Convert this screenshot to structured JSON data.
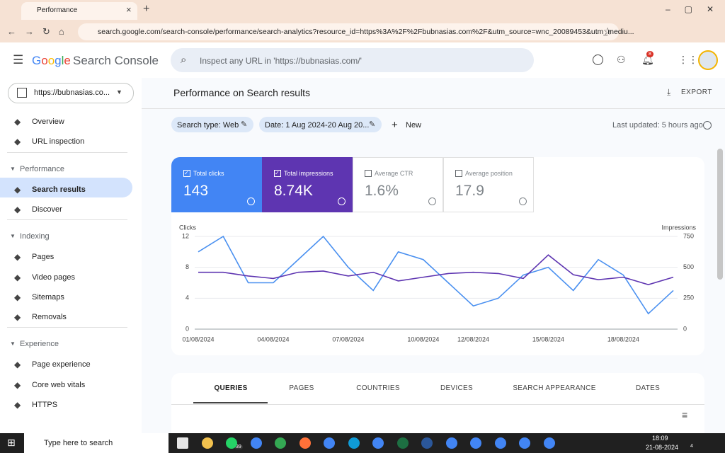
{
  "browser": {
    "tab_title": "Performance",
    "url": "search.google.com/search-console/performance/search-analytics?resource_id=https%3A%2F%2Fbubnasias.com%2F&utm_source=wnc_20089453&utm_mediu..."
  },
  "header": {
    "logo": "Google",
    "product": "Search Console",
    "search_placeholder": "Inspect any URL in 'https://bubnasias.com/'",
    "notification_count": "8"
  },
  "property": "https://bubnasias.co...",
  "nav": {
    "top": [
      "Overview",
      "URL inspection"
    ],
    "sections": [
      {
        "title": "Performance",
        "items": [
          "Search results",
          "Discover"
        ]
      },
      {
        "title": "Indexing",
        "items": [
          "Pages",
          "Video pages",
          "Sitemaps",
          "Removals"
        ]
      },
      {
        "title": "Experience",
        "items": [
          "Page experience",
          "Core web vitals",
          "HTTPS"
        ]
      }
    ]
  },
  "page": {
    "title": "Performance on Search results",
    "export": "EXPORT",
    "filters": [
      "Search type: Web",
      "Date: 1 Aug 2024-20 Aug 20..."
    ],
    "new": "New",
    "last_updated": "Last updated: 5 hours ago"
  },
  "metrics": [
    {
      "label": "Total clicks",
      "value": "143",
      "color": "#4285f4",
      "checked": true
    },
    {
      "label": "Total impressions",
      "value": "8.74K",
      "color": "#5e35b1",
      "checked": true
    },
    {
      "label": "Average CTR",
      "value": "1.6%",
      "checked": false
    },
    {
      "label": "Average position",
      "value": "17.9",
      "checked": false
    }
  ],
  "chart_data": {
    "type": "line",
    "categories": [
      "01/08/2024",
      null,
      null,
      "04/08/2024",
      null,
      null,
      "07/08/2024",
      null,
      null,
      "10/08/2024",
      null,
      "12/08/2024",
      null,
      null,
      "15/08/2024",
      null,
      null,
      "18/08/2024",
      null,
      null
    ],
    "y_label": "Clicks",
    "y2_label": "Impressions",
    "ylim": [
      0,
      12
    ],
    "yticks": [
      0,
      4,
      8,
      12
    ],
    "y2lim": [
      0,
      750
    ],
    "y2ticks": [
      0,
      250,
      500,
      750
    ],
    "grid": true,
    "series": [
      {
        "name": "Clicks",
        "color": "#4a90f0",
        "values": [
          10,
          12,
          6,
          6,
          9,
          12,
          8,
          5,
          10,
          9,
          6,
          3,
          4,
          7,
          8,
          5,
          9,
          7,
          2,
          5
        ]
      },
      {
        "name": "Impressions",
        "color": "#5e35b1",
        "axis": "y2",
        "values": [
          460,
          460,
          430,
          410,
          460,
          470,
          430,
          460,
          390,
          420,
          450,
          460,
          450,
          410,
          600,
          440,
          400,
          420,
          360,
          420
        ]
      }
    ]
  },
  "tabs": [
    "QUERIES",
    "PAGES",
    "COUNTRIES",
    "DEVICES",
    "SEARCH APPEARANCE",
    "DATES"
  ],
  "taskbar": {
    "search": "Type here to search",
    "badge": "39",
    "time": "18:09",
    "date": "21-08-2024",
    "notifications": "4"
  }
}
